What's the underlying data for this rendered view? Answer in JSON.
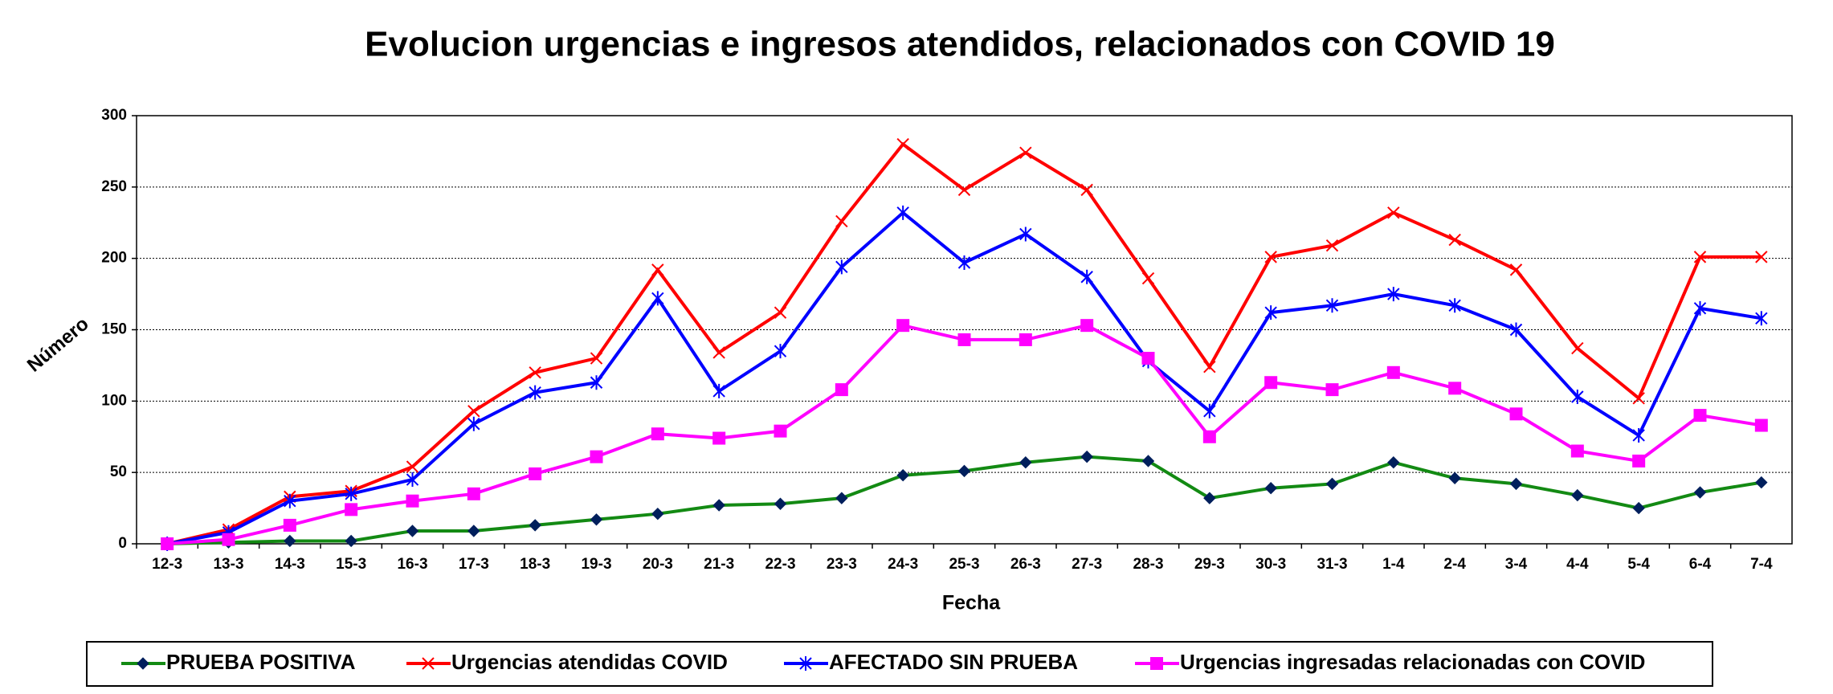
{
  "chart_data": {
    "type": "line",
    "title": "Evolucion urgencias e ingresos  atendidos, relacionados con COVID 19",
    "x_label": "Fecha",
    "y_label": "Número",
    "categories": [
      "12-3",
      "13-3",
      "14-3",
      "15-3",
      "16-3",
      "17-3",
      "18-3",
      "19-3",
      "20-3",
      "21-3",
      "22-3",
      "23-3",
      "24-3",
      "25-3",
      "26-3",
      "27-3",
      "28-3",
      "29-3",
      "30-3",
      "31-3",
      "1-4",
      "2-4",
      "3-4",
      "4-4",
      "5-4",
      "6-4",
      "7-4"
    ],
    "ylim": [
      0,
      300
    ],
    "yticks": [
      0,
      50,
      100,
      150,
      200,
      250,
      300
    ],
    "grid": true,
    "legend": "bottom",
    "series": [
      {
        "name": "PRUEBA POSITIVA",
        "color": "#138a13",
        "marker": "diamond",
        "values": [
          0,
          1,
          2,
          2,
          9,
          9,
          13,
          17,
          21,
          27,
          28,
          32,
          48,
          51,
          57,
          61,
          58,
          32,
          39,
          42,
          57,
          46,
          42,
          34,
          25,
          36,
          43
        ]
      },
      {
        "name": "Urgencias atendidas COVID",
        "color": "#ff0000",
        "marker": "x",
        "values": [
          0,
          10,
          33,
          37,
          54,
          93,
          120,
          130,
          192,
          134,
          162,
          226,
          280,
          248,
          274,
          248,
          186,
          124,
          201,
          209,
          232,
          213,
          192,
          137,
          102,
          201,
          201
        ]
      },
      {
        "name": "AFECTADO SIN PRUEBA",
        "color": "#0000ff",
        "marker": "asterisk",
        "values": [
          0,
          8,
          30,
          35,
          45,
          84,
          106,
          113,
          172,
          107,
          135,
          194,
          232,
          197,
          217,
          187,
          128,
          93,
          162,
          167,
          175,
          167,
          150,
          103,
          76,
          165,
          158
        ]
      },
      {
        "name": "Urgencias ingresadas relacionadas con COVID",
        "color": "#ff00ff",
        "marker": "square",
        "values": [
          0,
          3,
          13,
          24,
          30,
          35,
          49,
          61,
          77,
          74,
          79,
          108,
          153,
          143,
          143,
          153,
          130,
          75,
          113,
          108,
          120,
          109,
          91,
          65,
          58,
          90,
          83
        ]
      }
    ]
  }
}
